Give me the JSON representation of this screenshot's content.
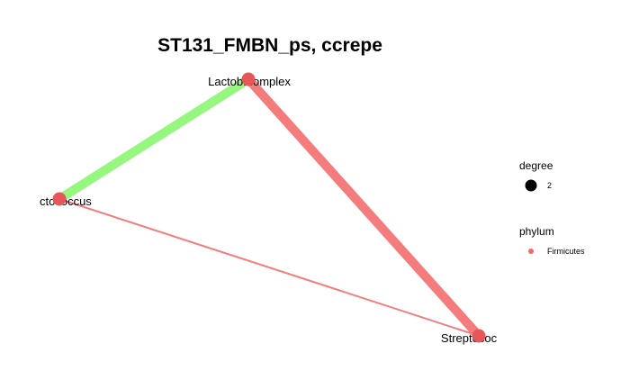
{
  "title": "ST131_FMBN_ps, ccrepe",
  "colors": {
    "positive_edge": "#96f77e",
    "negative_edge": "#f47c7c",
    "node_fill": "#e6575a",
    "legend_degree_dot": "#000000",
    "legend_phylum_dot": "#f16a64"
  },
  "nodes": [
    {
      "id": "lacto",
      "label": "Lactob...omplex",
      "degree": 2,
      "phylum": "Firmicutes"
    },
    {
      "id": "lacc",
      "label": "ctococcus",
      "degree": 2,
      "phylum": "Firmicutes"
    },
    {
      "id": "strep",
      "label": "Streptococ",
      "degree": 2,
      "phylum": "Firmicutes"
    }
  ],
  "edges": [
    {
      "source": "lacto",
      "target": "lacc",
      "sign": "positive",
      "weight": "strong"
    },
    {
      "source": "lacto",
      "target": "strep",
      "sign": "negative",
      "weight": "strong"
    },
    {
      "source": "lacc",
      "target": "strep",
      "sign": "negative",
      "weight": "weak"
    }
  ],
  "legend": {
    "degree": {
      "title": "degree",
      "items": [
        "2"
      ]
    },
    "phylum": {
      "title": "phylum",
      "items": [
        "Firmicutes"
      ]
    }
  }
}
